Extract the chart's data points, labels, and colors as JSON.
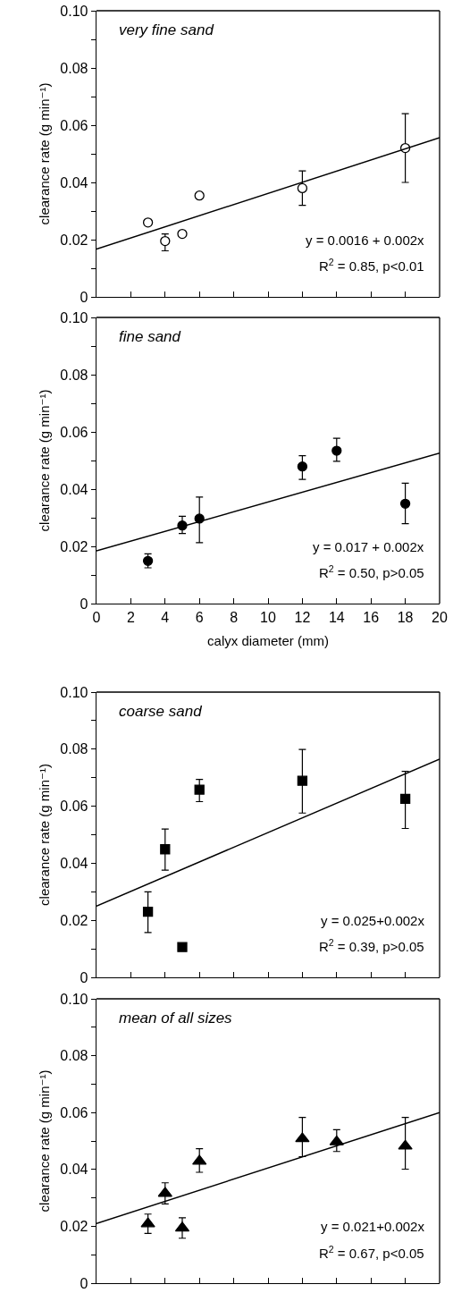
{
  "chart_data": [
    {
      "type": "scatter",
      "title": "very fine sand",
      "ylabel": "clearance rate (g min⁻¹)",
      "xlim": [
        0,
        20
      ],
      "xticks": [
        0,
        2,
        4,
        6,
        8,
        10,
        12,
        14,
        16,
        18,
        20
      ],
      "ylim": [
        0,
        0.1
      ],
      "yticks": [
        0,
        {
          "value": 0.01,
          "label": null
        },
        0.02,
        {
          "value": 0.03,
          "label": null
        },
        0.04,
        {
          "value": 0.05,
          "label": null
        },
        0.06,
        {
          "value": 0.07,
          "label": null
        },
        0.08,
        {
          "value": 0.09,
          "label": null
        },
        {
          "value": 0.1,
          "label": "0.10"
        }
      ],
      "tick_labels": "y",
      "annotations": [
        "y = 0.0016 + 0.002x",
        "R$^{2}$ = 0.85, p<0.01"
      ],
      "series": [
        {
          "type": "scatter",
          "marker": "circle",
          "color": "#ffffff",
          "x": [
            3,
            4,
            5,
            6,
            12,
            18
          ],
          "values": [
            0.026,
            0.0195,
            0.022,
            0.0354,
            0.038,
            0.052
          ],
          "errors": [
            null,
            [
              0.0161,
              0.022
            ],
            null,
            null,
            [
              0.032,
              0.044
            ],
            [
              0.04,
              0.064
            ]
          ]
        },
        {
          "type": "line",
          "color": "#000000",
          "x": [
            0,
            20
          ],
          "values": [
            0.0167,
            0.0556
          ]
        }
      ]
    },
    {
      "type": "scatter",
      "title": "fine sand",
      "xlabel": "calyx diameter (mm)",
      "ylabel": "clearance rate (g min⁻¹)",
      "xlim": [
        0,
        20
      ],
      "xticks": [
        0,
        2,
        4,
        6,
        8,
        10,
        12,
        14,
        16,
        18,
        20
      ],
      "ylim": [
        0,
        0.1
      ],
      "yticks": [
        0,
        {
          "value": 0.01,
          "label": null
        },
        0.02,
        {
          "value": 0.03,
          "label": null
        },
        0.04,
        {
          "value": 0.05,
          "label": null
        },
        0.06,
        {
          "value": 0.07,
          "label": null
        },
        0.08,
        {
          "value": 0.09,
          "label": null
        },
        {
          "value": 0.1,
          "label": "0.10"
        }
      ],
      "annotations": [
        "y = 0.017 + 0.002x",
        "R$^{2}$ = 0.50, p>0.05"
      ],
      "series": [
        {
          "type": "scatter",
          "marker": "circle",
          "color": "#000000",
          "x": [
            3,
            5,
            6,
            12,
            14,
            18
          ],
          "values": [
            0.0149,
            0.0273,
            0.0297,
            0.0479,
            0.0534,
            0.0349
          ],
          "errors": [
            [
              0.0125,
              0.0174
            ],
            [
              0.0245,
              0.0305
            ],
            [
              0.0213,
              0.0372
            ],
            [
              0.0434,
              0.0517
            ],
            [
              0.0497,
              0.0578
            ],
            [
              0.0279,
              0.0421
            ]
          ]
        },
        {
          "type": "line",
          "color": "#000000",
          "x": [
            0,
            20
          ],
          "values": [
            0.0184,
            0.0526
          ]
        }
      ]
    },
    {
      "type": "scatter",
      "title": "coarse sand",
      "ylabel": "clearance rate (g min⁻¹)",
      "xlim": [
        0,
        20
      ],
      "xticks": [
        0,
        2,
        4,
        6,
        8,
        10,
        12,
        14,
        16,
        18,
        20
      ],
      "ylim": [
        0,
        0.1
      ],
      "yticks": [
        0,
        {
          "value": 0.01,
          "label": null
        },
        0.02,
        {
          "value": 0.03,
          "label": null
        },
        0.04,
        {
          "value": 0.05,
          "label": null
        },
        0.06,
        {
          "value": 0.07,
          "label": null
        },
        0.08,
        {
          "value": 0.09,
          "label": null
        },
        {
          "value": 0.1,
          "label": "0.10"
        }
      ],
      "tick_labels": "y",
      "annotations": [
        "y = 0.025+0.002x",
        "R$^{2}$ = 0.39, p>0.05"
      ],
      "series": [
        {
          "type": "scatter",
          "marker": "square",
          "color": "#000000",
          "x": [
            3,
            4,
            5,
            6,
            12,
            18
          ],
          "values": [
            0.023,
            0.0449,
            0.0106,
            0.0658,
            0.0689,
            0.0626
          ],
          "errors": [
            [
              0.0157,
              0.03
            ],
            [
              0.0376,
              0.052
            ],
            null,
            [
              0.0616,
              0.0694
            ],
            [
              0.0576,
              0.0799
            ],
            [
              0.0522,
              0.0722
            ]
          ]
        },
        {
          "type": "line",
          "color": "#000000",
          "x": [
            0,
            20
          ],
          "values": [
            0.025,
            0.0765
          ]
        }
      ]
    },
    {
      "type": "scatter",
      "title": "mean of all sizes",
      "ylabel": "clearance rate (g min⁻¹)",
      "xlim": [
        0,
        20
      ],
      "xticks": [
        0,
        2,
        4,
        6,
        8,
        10,
        12,
        14,
        16,
        18,
        20
      ],
      "ylim": [
        0,
        0.1
      ],
      "yticks": [
        0,
        {
          "value": 0.01,
          "label": null
        },
        0.02,
        {
          "value": 0.03,
          "label": null
        },
        0.04,
        {
          "value": 0.05,
          "label": null
        },
        0.06,
        {
          "value": 0.07,
          "label": null
        },
        0.08,
        {
          "value": 0.09,
          "label": null
        },
        {
          "value": 0.1,
          "label": "0.10"
        }
      ],
      "tick_labels": "y",
      "annotations": [
        "y = 0.021+0.002x",
        "R$^{2}$ = 0.67, p<0.05"
      ],
      "series": [
        {
          "type": "scatter",
          "marker": "triangle",
          "color": "#000000",
          "x": [
            3,
            4,
            5,
            6,
            12,
            14,
            18
          ],
          "values": [
            0.0209,
            0.0316,
            0.0194,
            0.0429,
            0.0508,
            0.0497,
            0.0482
          ],
          "errors": [
            0.0034,
            0.0037,
            0.0036,
            [
              0.039,
              0.0473
            ],
            [
              0.0445,
              0.0583
            ],
            [
              0.0463,
              0.054
            ],
            [
              0.0401,
              0.0583
            ]
          ]
        },
        {
          "type": "line",
          "color": "#000000",
          "x": [
            0,
            20
          ],
          "values": [
            0.021,
            0.06
          ]
        }
      ]
    }
  ]
}
